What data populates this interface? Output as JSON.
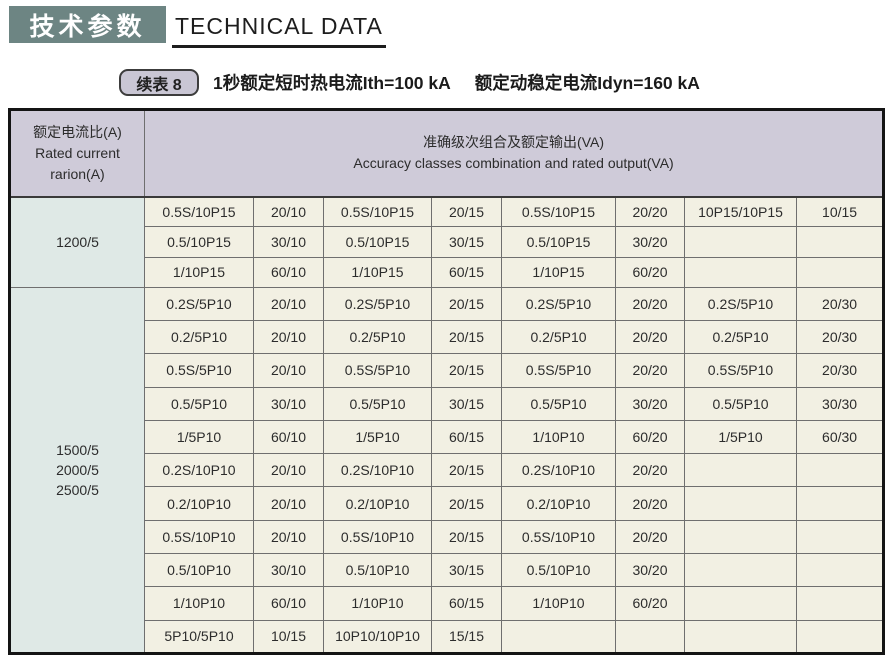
{
  "header": {
    "title_cn": "技术参数",
    "title_en": "TECHNICAL DATA"
  },
  "subtitle": {
    "badge": "续表 8",
    "text1": "1秒额定短时热电流Ith=100 kA",
    "text2": "额定动稳定电流Idyn=160 kA"
  },
  "colors": {
    "title_block_bg": "#6d8583",
    "table_header_bg": "#cfcbd9",
    "group_cell_bg": "#dfe9e6",
    "data_cell_bg": "#f2f0e3",
    "badge_bg": "#c9c6d4"
  },
  "table": {
    "header": {
      "ratio_lines": [
        "额定电流比(A)",
        "Rated current",
        "rarion(A)"
      ],
      "accuracy_lines": [
        "准确级次组合及额定输出(VA)",
        "Accuracy classes combination and rated output(VA)"
      ]
    },
    "groups": [
      {
        "ratio_lines": [
          "1200/5"
        ],
        "rows": [
          [
            "0.5S/10P15",
            "20/10",
            "0.5S/10P15",
            "20/15",
            "0.5S/10P15",
            "20/20",
            "10P15/10P15",
            "10/15"
          ],
          [
            "0.5/10P15",
            "30/10",
            "0.5/10P15",
            "30/15",
            "0.5/10P15",
            "30/20",
            "",
            ""
          ],
          [
            "1/10P15",
            "60/10",
            "1/10P15",
            "60/15",
            "1/10P15",
            "60/20",
            "",
            ""
          ]
        ]
      },
      {
        "ratio_lines": [
          "1500/5",
          "2000/5",
          "2500/5"
        ],
        "rows": [
          [
            "0.2S/5P10",
            "20/10",
            "0.2S/5P10",
            "20/15",
            "0.2S/5P10",
            "20/20",
            "0.2S/5P10",
            "20/30"
          ],
          [
            "0.2/5P10",
            "20/10",
            "0.2/5P10",
            "20/15",
            "0.2/5P10",
            "20/20",
            "0.2/5P10",
            "20/30"
          ],
          [
            "0.5S/5P10",
            "20/10",
            "0.5S/5P10",
            "20/15",
            "0.5S/5P10",
            "20/20",
            "0.5S/5P10",
            "20/30"
          ],
          [
            "0.5/5P10",
            "30/10",
            "0.5/5P10",
            "30/15",
            "0.5/5P10",
            "30/20",
            "0.5/5P10",
            "30/30"
          ],
          [
            "1/5P10",
            "60/10",
            "1/5P10",
            "60/15",
            "1/10P10",
            "60/20",
            "1/5P10",
            "60/30"
          ],
          [
            "0.2S/10P10",
            "20/10",
            "0.2S/10P10",
            "20/15",
            "0.2S/10P10",
            "20/20",
            "",
            ""
          ],
          [
            "0.2/10P10",
            "20/10",
            "0.2/10P10",
            "20/15",
            "0.2/10P10",
            "20/20",
            "",
            ""
          ],
          [
            "0.5S/10P10",
            "20/10",
            "0.5S/10P10",
            "20/15",
            "0.5S/10P10",
            "20/20",
            "",
            ""
          ],
          [
            "0.5/10P10",
            "30/10",
            "0.5/10P10",
            "30/15",
            "0.5/10P10",
            "30/20",
            "",
            ""
          ],
          [
            "1/10P10",
            "60/10",
            "1/10P10",
            "60/15",
            "1/10P10",
            "60/20",
            "",
            ""
          ],
          [
            "5P10/5P10",
            "10/15",
            "10P10/10P10",
            "15/15",
            "",
            "",
            "",
            ""
          ]
        ]
      }
    ]
  }
}
